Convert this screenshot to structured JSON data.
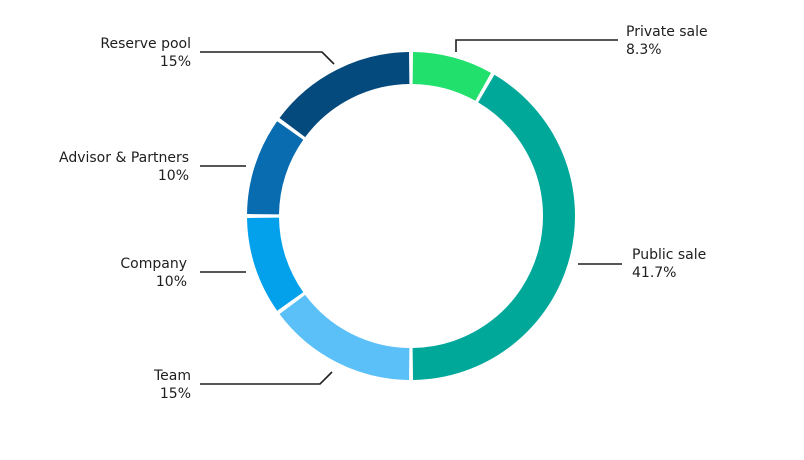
{
  "chart_data": {
    "type": "pie",
    "donut": true,
    "title": "",
    "slices": [
      {
        "label": "Private sale",
        "value": 8.3,
        "display": "8.3%",
        "color": "#21e06c"
      },
      {
        "label": "Public sale",
        "value": 41.7,
        "display": "41.7%",
        "color": "#00a89a"
      },
      {
        "label": "Team",
        "value": 15,
        "display": "15%",
        "color": "#5bc0f7"
      },
      {
        "label": "Company",
        "value": 10,
        "display": "10%",
        "color": "#03a1ec"
      },
      {
        "label": "Advisor & Partners",
        "value": 10,
        "display": "10%",
        "color": "#0a6cb0"
      },
      {
        "label": "Reserve pool",
        "value": 15,
        "display": "15%",
        "color": "#054a7d"
      }
    ]
  }
}
